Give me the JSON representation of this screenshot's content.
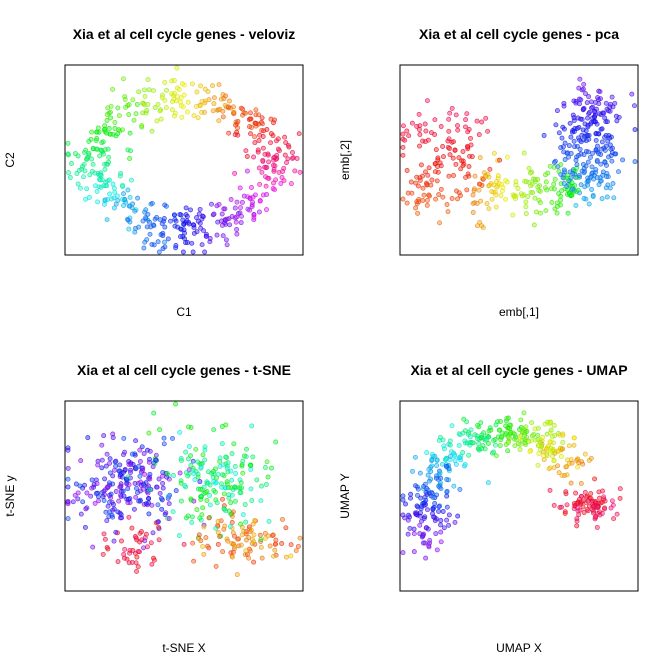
{
  "chart_data": [
    {
      "type": "scatter",
      "title": "Xia et al cell cycle genes - veloviz",
      "xlabel": "C1",
      "ylabel": "C2",
      "shape": "ring",
      "color_mapping": "hue by cell cycle position",
      "grid": false,
      "legend": "none"
    },
    {
      "type": "scatter",
      "title": "Xia et al cell cycle genes - pca",
      "xlabel": "emb[,1]",
      "ylabel": "emb[,2]",
      "shape": "horseshoe",
      "color_mapping": "hue by cell cycle position",
      "grid": false,
      "legend": "none"
    },
    {
      "type": "scatter",
      "title": "Xia et al cell cycle genes - t-SNE",
      "xlabel": "t-SNE X",
      "ylabel": "t-SNE y",
      "shape": "cloud",
      "color_mapping": "hue by cell cycle position",
      "grid": false,
      "legend": "none"
    },
    {
      "type": "scatter",
      "title": "Xia et al cell cycle genes - UMAP",
      "xlabel": "UMAP X",
      "ylabel": "UMAP Y",
      "shape": "curved band with side cluster",
      "color_mapping": "hue by cell cycle position",
      "grid": false,
      "legend": "none"
    }
  ]
}
